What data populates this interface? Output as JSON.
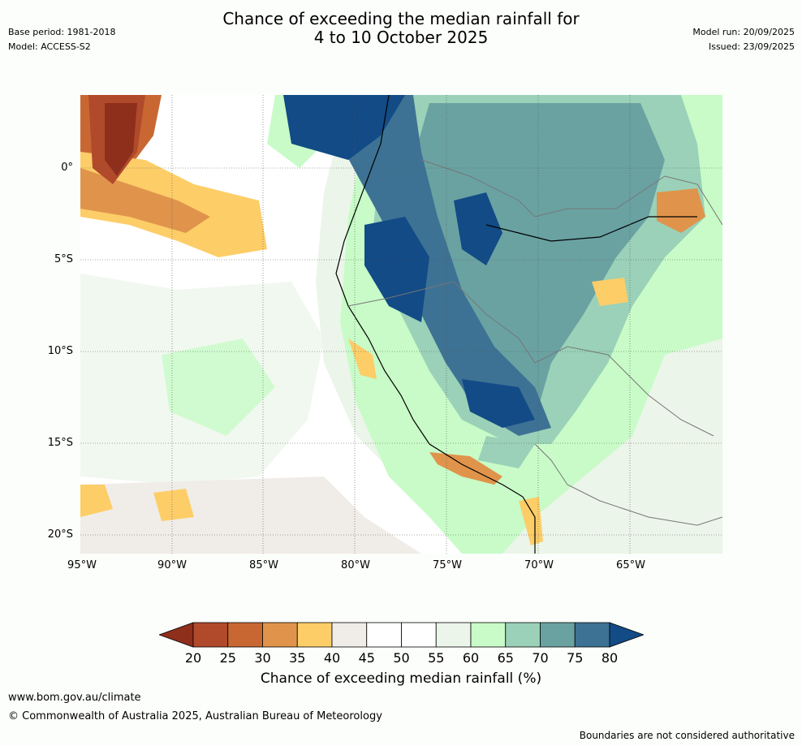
{
  "title_line1": "Chance of exceeding the median rainfall for",
  "title_line2": "4 to 10 October 2025",
  "base_period": "Base period: 1981-2018",
  "model": "Model: ACCESS-S2",
  "model_run": "Model run: 20/09/2025",
  "issued": "Issued: 23/09/2025",
  "longitudes": [
    "95°W",
    "90°W",
    "85°W",
    "80°W",
    "75°W",
    "70°W",
    "65°W"
  ],
  "latitudes": [
    "0°",
    "5°S",
    "10°S",
    "15°S",
    "20°S"
  ],
  "legend": {
    "label": "Chance of exceeding median rainfall (%)",
    "ticks": [
      "20",
      "25",
      "30",
      "35",
      "40",
      "45",
      "50",
      "55",
      "60",
      "65",
      "70",
      "75",
      "80"
    ],
    "colors": [
      "#8e2f1c",
      "#b14a2b",
      "#c96733",
      "#e0944b",
      "#fdcd68",
      "#f0ede8",
      "#ffffff",
      "#ffffff",
      "#ebf5e9",
      "#c8fbc8",
      "#9ad1b8",
      "#6aa2a2",
      "#3d7294",
      "#124b86"
    ]
  },
  "footer": {
    "url": "www.bom.gov.au/climate",
    "copyright": "© Commonwealth of Australia 2025, Australian Bureau of Meteorology",
    "note": "Boundaries are not considered authoritative"
  }
}
